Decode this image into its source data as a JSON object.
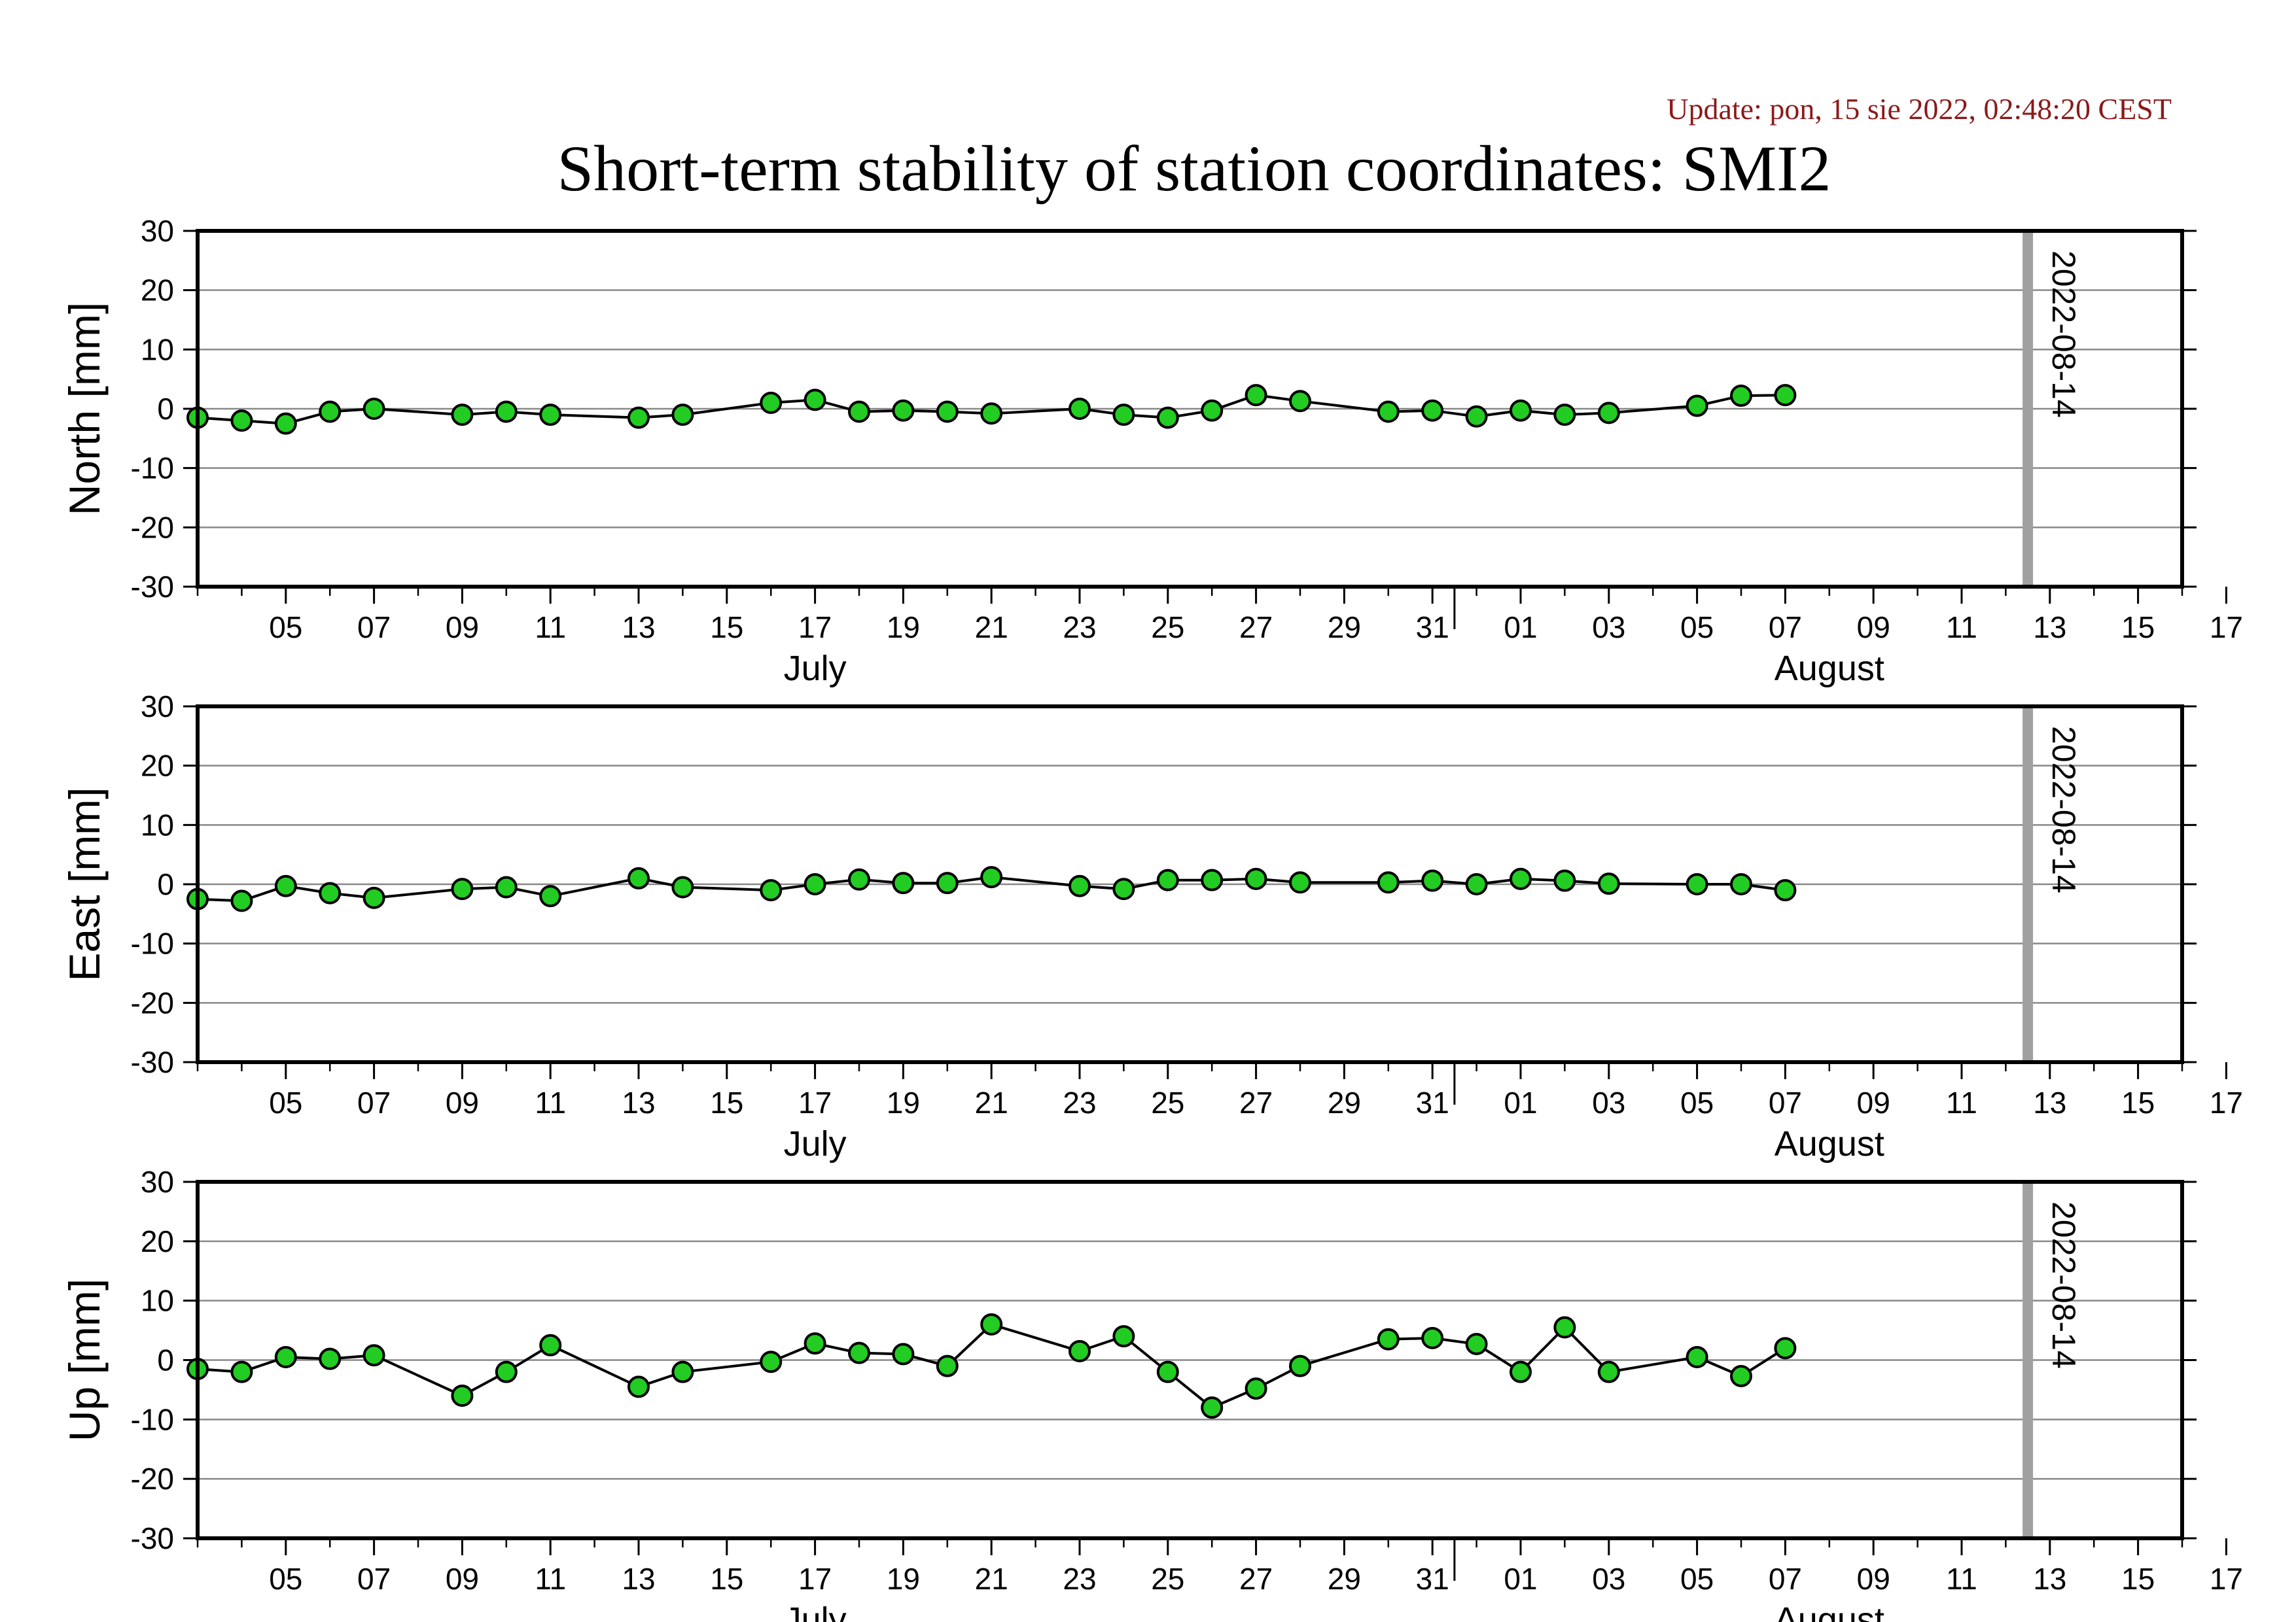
{
  "header": {
    "update": "Update: pon, 15 sie 2022, 02:48:20 CEST",
    "title": "Short-term stability of station coordinates: SMI2"
  },
  "colors": {
    "point_fill": "#22cc22",
    "point_stroke": "#000000",
    "line": "#000000",
    "grid": "#888888",
    "marker_line": "#a0a0a0",
    "update_text": "#8b1a1a"
  },
  "chart_data": [
    {
      "type": "line",
      "ylabel": "North [mm]",
      "ylim": [
        -30,
        30
      ],
      "yticks": [
        -30,
        -20,
        -10,
        0,
        10,
        20,
        30
      ],
      "xlim": [
        "2022-07-03",
        "2022-08-17"
      ],
      "xtick_labels": [
        "05",
        "07",
        "09",
        "11",
        "13",
        "15",
        "17",
        "19",
        "21",
        "23",
        "25",
        "27",
        "29",
        "31",
        "01",
        "03",
        "05",
        "07",
        "09",
        "11",
        "13",
        "15",
        "17"
      ],
      "months": [
        {
          "label": "July",
          "date": "2022-07-17"
        },
        {
          "label": "August",
          "date": "2022-08-09"
        }
      ],
      "marker": {
        "date": "2022-08-14",
        "label": "2022-08-14"
      },
      "grid": "horizontal",
      "points": [
        [
          "2022-07-03",
          -1.5
        ],
        [
          "2022-07-04",
          -2.0
        ],
        [
          "2022-07-05",
          -2.5
        ],
        [
          "2022-07-06",
          -0.5
        ],
        [
          "2022-07-07",
          0.0
        ],
        [
          "2022-07-09",
          -1.0
        ],
        [
          "2022-07-10",
          -0.5
        ],
        [
          "2022-07-11",
          -1.0
        ],
        [
          "2022-07-13",
          -1.5
        ],
        [
          "2022-07-14",
          -1.0
        ],
        [
          "2022-07-16",
          1.0
        ],
        [
          "2022-07-17",
          1.5
        ],
        [
          "2022-07-18",
          -0.5
        ],
        [
          "2022-07-19",
          -0.3
        ],
        [
          "2022-07-20",
          -0.5
        ],
        [
          "2022-07-21",
          -0.8
        ],
        [
          "2022-07-23",
          0.0
        ],
        [
          "2022-07-24",
          -1.0
        ],
        [
          "2022-07-25",
          -1.5
        ],
        [
          "2022-07-26",
          -0.3
        ],
        [
          "2022-07-27",
          2.3
        ],
        [
          "2022-07-28",
          1.3
        ],
        [
          "2022-07-30",
          -0.5
        ],
        [
          "2022-07-31",
          -0.3
        ],
        [
          "2022-08-01",
          -1.3
        ],
        [
          "2022-08-02",
          -0.3
        ],
        [
          "2022-08-03",
          -1.0
        ],
        [
          "2022-08-04",
          -0.7
        ],
        [
          "2022-08-06",
          0.5
        ],
        [
          "2022-08-07",
          2.2
        ],
        [
          "2022-08-08",
          2.3
        ]
      ]
    },
    {
      "type": "line",
      "ylabel": "East [mm]",
      "ylim": [
        -30,
        30
      ],
      "yticks": [
        -30,
        -20,
        -10,
        0,
        10,
        20,
        30
      ],
      "xlim": [
        "2022-07-03",
        "2022-08-17"
      ],
      "xtick_labels": [
        "05",
        "07",
        "09",
        "11",
        "13",
        "15",
        "17",
        "19",
        "21",
        "23",
        "25",
        "27",
        "29",
        "31",
        "01",
        "03",
        "05",
        "07",
        "09",
        "11",
        "13",
        "15",
        "17"
      ],
      "months": [
        {
          "label": "July",
          "date": "2022-07-17"
        },
        {
          "label": "August",
          "date": "2022-08-09"
        }
      ],
      "marker": {
        "date": "2022-08-14",
        "label": "2022-08-14"
      },
      "grid": "horizontal",
      "points": [
        [
          "2022-07-03",
          -2.5
        ],
        [
          "2022-07-04",
          -2.8
        ],
        [
          "2022-07-05",
          -0.3
        ],
        [
          "2022-07-06",
          -1.5
        ],
        [
          "2022-07-07",
          -2.3
        ],
        [
          "2022-07-09",
          -0.8
        ],
        [
          "2022-07-10",
          -0.5
        ],
        [
          "2022-07-11",
          -2.0
        ],
        [
          "2022-07-13",
          1.0
        ],
        [
          "2022-07-14",
          -0.5
        ],
        [
          "2022-07-16",
          -1.0
        ],
        [
          "2022-07-17",
          0.0
        ],
        [
          "2022-07-18",
          0.8
        ],
        [
          "2022-07-19",
          0.2
        ],
        [
          "2022-07-20",
          0.2
        ],
        [
          "2022-07-21",
          1.2
        ],
        [
          "2022-07-23",
          -0.3
        ],
        [
          "2022-07-24",
          -0.8
        ],
        [
          "2022-07-25",
          0.7
        ],
        [
          "2022-07-26",
          0.7
        ],
        [
          "2022-07-27",
          0.9
        ],
        [
          "2022-07-28",
          0.3
        ],
        [
          "2022-07-30",
          0.3
        ],
        [
          "2022-07-31",
          0.6
        ],
        [
          "2022-08-01",
          0.0
        ],
        [
          "2022-08-02",
          0.9
        ],
        [
          "2022-08-03",
          0.6
        ],
        [
          "2022-08-04",
          0.1
        ],
        [
          "2022-08-06",
          0.0
        ],
        [
          "2022-08-07",
          0.0
        ],
        [
          "2022-08-08",
          -1.0
        ]
      ]
    },
    {
      "type": "line",
      "ylabel": "Up [mm]",
      "ylim": [
        -30,
        30
      ],
      "yticks": [
        -30,
        -20,
        -10,
        0,
        10,
        20,
        30
      ],
      "xlim": [
        "2022-07-03",
        "2022-08-17"
      ],
      "xtick_labels": [
        "05",
        "07",
        "09",
        "11",
        "13",
        "15",
        "17",
        "19",
        "21",
        "23",
        "25",
        "27",
        "29",
        "31",
        "01",
        "03",
        "05",
        "07",
        "09",
        "11",
        "13",
        "15",
        "17"
      ],
      "months": [
        {
          "label": "July",
          "date": "2022-07-17"
        },
        {
          "label": "August",
          "date": "2022-08-09"
        }
      ],
      "marker": {
        "date": "2022-08-14",
        "label": "2022-08-14"
      },
      "grid": "horizontal",
      "points": [
        [
          "2022-07-03",
          -1.5
        ],
        [
          "2022-07-04",
          -2.0
        ],
        [
          "2022-07-05",
          0.5
        ],
        [
          "2022-07-06",
          0.2
        ],
        [
          "2022-07-07",
          0.8
        ],
        [
          "2022-07-09",
          -6.0
        ],
        [
          "2022-07-10",
          -2.0
        ],
        [
          "2022-07-11",
          2.5
        ],
        [
          "2022-07-13",
          -4.5
        ],
        [
          "2022-07-14",
          -2.0
        ],
        [
          "2022-07-16",
          -0.3
        ],
        [
          "2022-07-17",
          2.8
        ],
        [
          "2022-07-18",
          1.2
        ],
        [
          "2022-07-19",
          1.0
        ],
        [
          "2022-07-20",
          -1.0
        ],
        [
          "2022-07-21",
          6.0
        ],
        [
          "2022-07-23",
          1.5
        ],
        [
          "2022-07-24",
          4.0
        ],
        [
          "2022-07-25",
          -2.0
        ],
        [
          "2022-07-26",
          -8.0
        ],
        [
          "2022-07-27",
          -4.8
        ],
        [
          "2022-07-28",
          -1.0
        ],
        [
          "2022-07-30",
          3.5
        ],
        [
          "2022-07-31",
          3.7
        ],
        [
          "2022-08-01",
          2.7
        ],
        [
          "2022-08-02",
          -2.0
        ],
        [
          "2022-08-03",
          5.5
        ],
        [
          "2022-08-04",
          -2.0
        ],
        [
          "2022-08-06",
          0.5
        ],
        [
          "2022-08-07",
          -2.7
        ],
        [
          "2022-08-08",
          2.0
        ]
      ]
    }
  ]
}
